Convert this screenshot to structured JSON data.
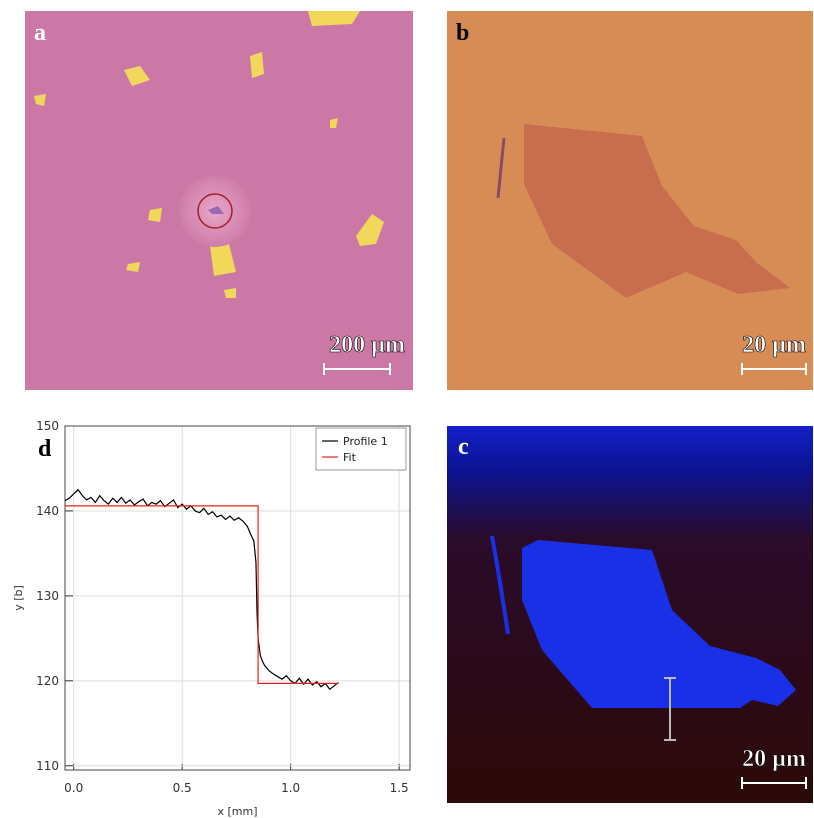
{
  "panels": {
    "a": {
      "label": "a",
      "scale_bar": "200 µm"
    },
    "b": {
      "label": "b",
      "scale_bar": "20 µm"
    },
    "c": {
      "label": "c",
      "scale_bar": "20 µm"
    },
    "d": {
      "label": "d"
    }
  },
  "chart_data": {
    "type": "line",
    "xlabel": "x [mm]",
    "ylabel": "y [b]",
    "xlim": [
      -0.04,
      1.55
    ],
    "ylim": [
      109.5,
      150
    ],
    "xticks": [
      {
        "value": 0,
        "label": "0.0"
      },
      0.5,
      {
        "value": 1,
        "label": "1.0"
      },
      1.5
    ],
    "yticks": [
      110,
      120,
      130,
      140,
      150
    ],
    "grid": true,
    "legend": "upper right",
    "series": [
      {
        "name": "Profile 1",
        "color": "#000000",
        "x": [
          -0.04,
          -0.02,
          0.0,
          0.02,
          0.04,
          0.06,
          0.08,
          0.1,
          0.12,
          0.14,
          0.16,
          0.18,
          0.2,
          0.22,
          0.24,
          0.26,
          0.28,
          0.3,
          0.32,
          0.34,
          0.36,
          0.38,
          0.4,
          0.42,
          0.44,
          0.46,
          0.48,
          0.5,
          0.52,
          0.54,
          0.56,
          0.58,
          0.6,
          0.62,
          0.64,
          0.66,
          0.68,
          0.7,
          0.72,
          0.74,
          0.76,
          0.78,
          0.8,
          0.82,
          0.83,
          0.84,
          0.845,
          0.85,
          0.86,
          0.87,
          0.88,
          0.9,
          0.92,
          0.94,
          0.96,
          0.98,
          1.0,
          1.02,
          1.04,
          1.06,
          1.08,
          1.1,
          1.12,
          1.14,
          1.16,
          1.18,
          1.2,
          1.22
        ],
        "values": [
          141.2,
          141.5,
          142,
          142.5,
          141.8,
          141.3,
          141.6,
          141.0,
          141.8,
          141.2,
          140.8,
          141.5,
          141.0,
          141.6,
          140.9,
          141.3,
          140.7,
          141.1,
          141.4,
          140.6,
          141.0,
          140.8,
          141.2,
          140.5,
          140.9,
          141.3,
          140.4,
          140.8,
          140.2,
          140.6,
          140.0,
          139.8,
          140.3,
          139.6,
          139.9,
          139.3,
          139.5,
          139.0,
          139.4,
          138.9,
          139.2,
          138.8,
          138.2,
          137.0,
          136.5,
          134,
          128,
          125,
          123,
          122.3,
          121.8,
          121.2,
          120.8,
          120.5,
          120.2,
          120.6,
          120.0,
          119.7,
          120.3,
          119.6,
          120.2,
          119.5,
          119.9,
          119.3,
          119.7,
          119.0,
          119.4,
          119.8
        ]
      },
      {
        "name": "Fit",
        "color": "#e8201a",
        "x": [
          -0.04,
          0.85,
          0.85,
          1.22
        ],
        "values": [
          140.6,
          140.6,
          119.7,
          119.7
        ]
      }
    ]
  }
}
